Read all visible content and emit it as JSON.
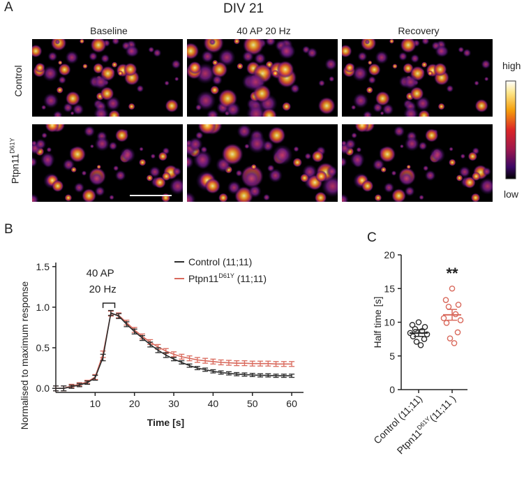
{
  "panel_a": {
    "letter": "A",
    "title": "DIV 21",
    "columns": [
      "Baseline",
      "40 AP 20 Hz",
      "Recovery"
    ],
    "rows": {
      "control": "Control",
      "mutant_base": "Ptpn11",
      "mutant_sup": "D61Y"
    },
    "colorbar": {
      "high": "high",
      "low": "low"
    }
  },
  "panel_b": {
    "letter": "B"
  },
  "panel_c": {
    "letter": "C"
  },
  "colors": {
    "control": "#2b2b2b",
    "mutant": "#d9695c",
    "background": "#000000"
  },
  "chart_data": [
    {
      "type": "line",
      "panel": "B",
      "xlabel": "Time  [s]",
      "ylabel": "Normalised to maximum response",
      "xlim": [
        0,
        63
      ],
      "ylim": [
        -0.05,
        1.55
      ],
      "xticks": [
        10,
        20,
        30,
        40,
        50,
        60
      ],
      "yticks": [
        0.0,
        0.5,
        1.0,
        1.5
      ],
      "annotation": {
        "line1": "40 AP",
        "line2": "20 Hz",
        "start": 12,
        "end": 15
      },
      "x": [
        0,
        2,
        4,
        6,
        8,
        10,
        12,
        14,
        16,
        18,
        20,
        22,
        24,
        26,
        28,
        30,
        32,
        34,
        36,
        38,
        40,
        42,
        44,
        46,
        48,
        50,
        52,
        54,
        56,
        58,
        60
      ],
      "series": [
        {
          "name": "Control",
          "label_base": "Control (11;11)",
          "label_sup": "",
          "label_tail": "",
          "values": [
            0.0,
            0.0,
            0.02,
            0.04,
            0.07,
            0.13,
            0.38,
            0.93,
            0.89,
            0.79,
            0.7,
            0.62,
            0.54,
            0.47,
            0.41,
            0.36,
            0.32,
            0.28,
            0.25,
            0.23,
            0.21,
            0.195,
            0.185,
            0.175,
            0.17,
            0.165,
            0.16,
            0.16,
            0.155,
            0.155,
            0.155
          ],
          "err": [
            0.03,
            0.03,
            0.02,
            0.02,
            0.02,
            0.03,
            0.04,
            0.03,
            0.03,
            0.03,
            0.03,
            0.03,
            0.03,
            0.03,
            0.03,
            0.02,
            0.02,
            0.02,
            0.02,
            0.02,
            0.02,
            0.02,
            0.02,
            0.02,
            0.02,
            0.02,
            0.02,
            0.02,
            0.02,
            0.02,
            0.02
          ]
        },
        {
          "name": "Ptpn11 D61Y",
          "label_base": "Ptpn11",
          "label_sup": "D61Y",
          "label_tail": " (11;11)",
          "values": [
            0.0,
            0.0,
            0.03,
            0.05,
            0.08,
            0.14,
            0.42,
            0.92,
            0.9,
            0.81,
            0.72,
            0.64,
            0.57,
            0.51,
            0.46,
            0.42,
            0.39,
            0.37,
            0.35,
            0.34,
            0.33,
            0.32,
            0.315,
            0.31,
            0.31,
            0.305,
            0.305,
            0.305,
            0.3,
            0.3,
            0.3
          ],
          "err": [
            0.03,
            0.03,
            0.02,
            0.02,
            0.02,
            0.03,
            0.04,
            0.03,
            0.03,
            0.03,
            0.03,
            0.03,
            0.03,
            0.03,
            0.03,
            0.03,
            0.03,
            0.03,
            0.03,
            0.03,
            0.03,
            0.03,
            0.03,
            0.03,
            0.03,
            0.03,
            0.03,
            0.03,
            0.03,
            0.03,
            0.03
          ]
        }
      ]
    },
    {
      "type": "scatter",
      "panel": "C",
      "ylabel": "Half time [s]",
      "ylim": [
        0,
        20
      ],
      "yticks": [
        0,
        5,
        10,
        15,
        20
      ],
      "significance": "**",
      "groups": [
        {
          "label_base": "Control (11;11)",
          "label_sup": "",
          "label_tail": "",
          "mean": 8.4,
          "sem": 0.5,
          "values": [
            10.0,
            9.6,
            9.3,
            9.0,
            8.7,
            8.4,
            8.2,
            7.9,
            7.5,
            7.1,
            6.6
          ]
        },
        {
          "label_base": "Ptpn11",
          "label_sup": "D61Y",
          "label_tail": "(11;11 )",
          "mean": 11.1,
          "sem": 0.8,
          "values": [
            15.0,
            13.3,
            12.6,
            12.3,
            11.2,
            10.6,
            10.3,
            9.9,
            8.5,
            7.6,
            6.9
          ]
        }
      ]
    }
  ]
}
